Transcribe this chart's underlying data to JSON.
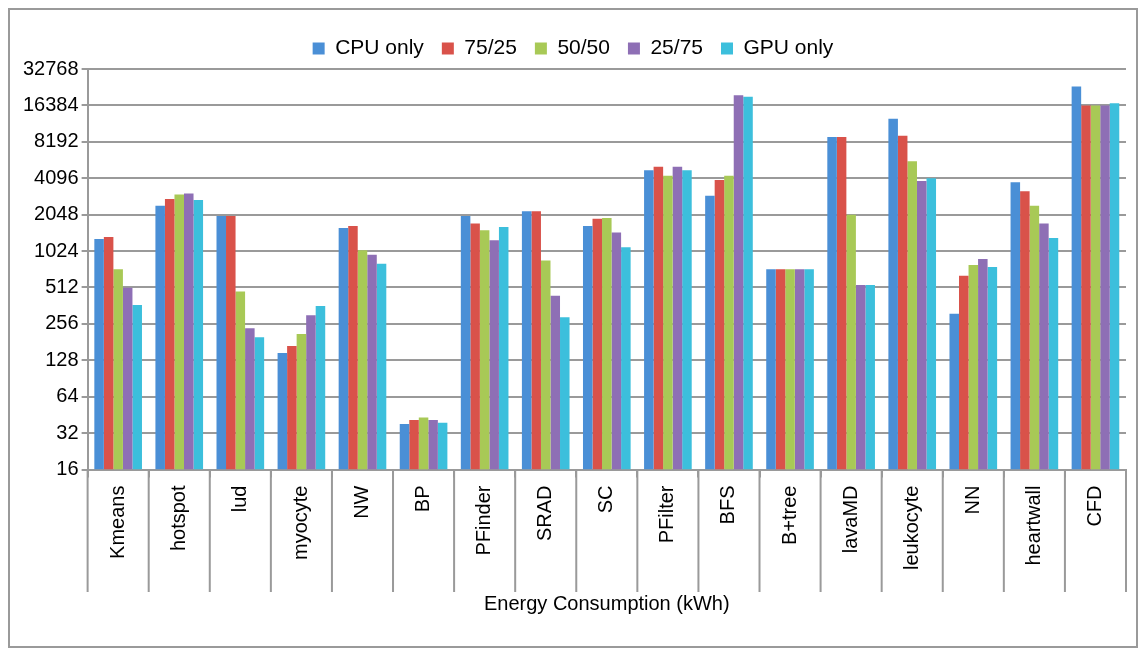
{
  "chart_data": {
    "type": "bar",
    "xlabel": "Energy Consumption (kWh)",
    "categories": [
      "Kmeans",
      "hotspot",
      "lud",
      "myocyte",
      "NW",
      "BP",
      "PFinder",
      "SRAD",
      "SC",
      "PFilter",
      "BFS",
      "B+tree",
      "lavaMD",
      "leukocyte",
      "NN",
      "heartwall",
      "CFD"
    ],
    "series": [
      {
        "name": "CPU only",
        "color": "#4a8fd6",
        "values": [
          1290,
          2420,
          2000,
          147,
          1590,
          38,
          2000,
          2180,
          1650,
          4770,
          2940,
          724,
          9000,
          12700,
          311,
          3800,
          23500
        ]
      },
      {
        "name": "75/25",
        "color": "#d9524a",
        "values": [
          1340,
          2760,
          2000,
          168,
          1650,
          41,
          1730,
          2180,
          1890,
          5100,
          3960,
          724,
          9000,
          9200,
          640,
          3190,
          16384
        ]
      },
      {
        "name": "50/50",
        "color": "#a8c956",
        "values": [
          724,
          3000,
          474,
          211,
          1040,
          43,
          1520,
          855,
          1920,
          4300,
          4300,
          724,
          2048,
          5670,
          787,
          2420,
          16384
        ]
      },
      {
        "name": "25/75",
        "color": "#8e6fb5",
        "values": [
          508,
          3060,
          236,
          302,
          955,
          41,
          1260,
          437,
          1460,
          5100,
          19900,
          724,
          537,
          3880,
          879,
          1730,
          16384
        ]
      },
      {
        "name": "GPU only",
        "color": "#3cbfdc",
        "values": [
          367,
          2700,
          198,
          360,
          803,
          39,
          1620,
          290,
          1100,
          4770,
          19350,
          724,
          537,
          4096,
          755,
          1310,
          17100
        ]
      }
    ],
    "log": true,
    "ylim": [
      16,
      32768
    ],
    "yticks": [
      16,
      32,
      64,
      128,
      256,
      512,
      1024,
      2048,
      4096,
      8192,
      16384,
      32768
    ],
    "grid": "y",
    "legend": "top"
  }
}
